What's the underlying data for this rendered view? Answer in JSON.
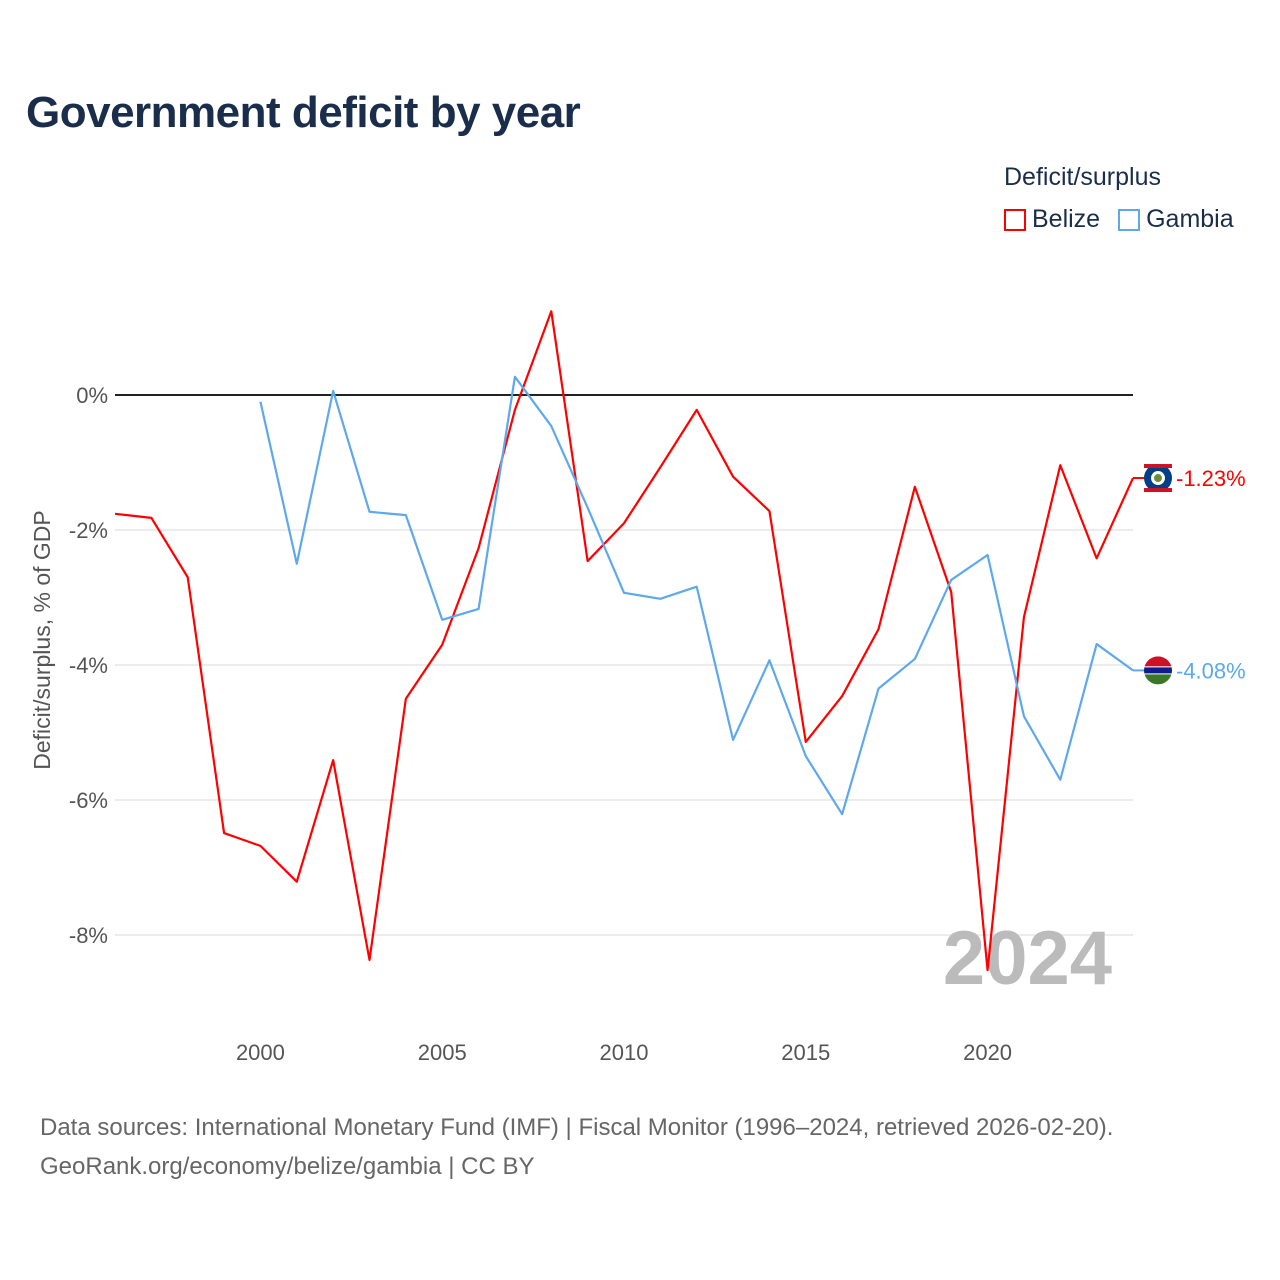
{
  "title": "Government deficit by year",
  "legend": {
    "title": "Deficit/surplus",
    "items": [
      "Belize",
      "Gambia"
    ]
  },
  "source_line1": "Data sources: International Monetary Fund (IMF) | Fiscal Monitor (1996–2024, retrieved 2026-02-20).",
  "source_line2": "GeoRank.org/economy/belize/gambia | CC BY",
  "chart_data": {
    "type": "line",
    "title": "Government deficit by year",
    "xlabel": "",
    "ylabel": "Deficit/surplus, % of GDP",
    "xlim": [
      1996,
      2024
    ],
    "ylim": [
      -9,
      2
    ],
    "x_ticks": [
      2000,
      2005,
      2010,
      2015,
      2020
    ],
    "y_ticks": [
      0,
      -2,
      -4,
      -6,
      -8
    ],
    "y_tick_labels": [
      "0%",
      "-2%",
      "-4%",
      "-6%",
      "-8%"
    ],
    "year_watermark": "2024",
    "series": [
      {
        "name": "Belize",
        "color": "#ff0000",
        "end_label": "-1.23%",
        "x": [
          1996,
          1997,
          1998,
          1999,
          2000,
          2001,
          2002,
          2003,
          2004,
          2005,
          2006,
          2007,
          2008,
          2009,
          2010,
          2011,
          2012,
          2013,
          2014,
          2015,
          2016,
          2017,
          2018,
          2019,
          2020,
          2021,
          2022,
          2023,
          2024
        ],
        "values": [
          -1.76,
          -1.82,
          -2.7,
          -6.49,
          -6.68,
          -7.21,
          -5.41,
          -8.37,
          -4.5,
          -3.7,
          -2.27,
          -0.22,
          1.24,
          -2.46,
          -1.9,
          -1.07,
          -0.22,
          -1.21,
          -1.72,
          -5.14,
          -4.46,
          -3.47,
          -1.36,
          -2.92,
          -8.52,
          -3.29,
          -1.04,
          -2.42,
          -1.23
        ]
      },
      {
        "name": "Gambia",
        "color": "#5ea8ec",
        "end_label": "-4.08%",
        "x": [
          2000,
          2001,
          2002,
          2003,
          2004,
          2005,
          2006,
          2007,
          2008,
          2009,
          2010,
          2011,
          2012,
          2013,
          2014,
          2015,
          2016,
          2017,
          2018,
          2019,
          2020,
          2021,
          2022,
          2023,
          2024
        ],
        "values": [
          -0.1,
          -2.5,
          0.06,
          -1.73,
          -1.78,
          -3.33,
          -3.17,
          0.27,
          -0.46,
          -1.67,
          -2.93,
          -3.02,
          -2.84,
          -5.11,
          -3.93,
          -5.35,
          -6.21,
          -4.35,
          -3.91,
          -2.74,
          -2.37,
          -4.76,
          -5.7,
          -3.69,
          -4.08
        ]
      }
    ]
  }
}
